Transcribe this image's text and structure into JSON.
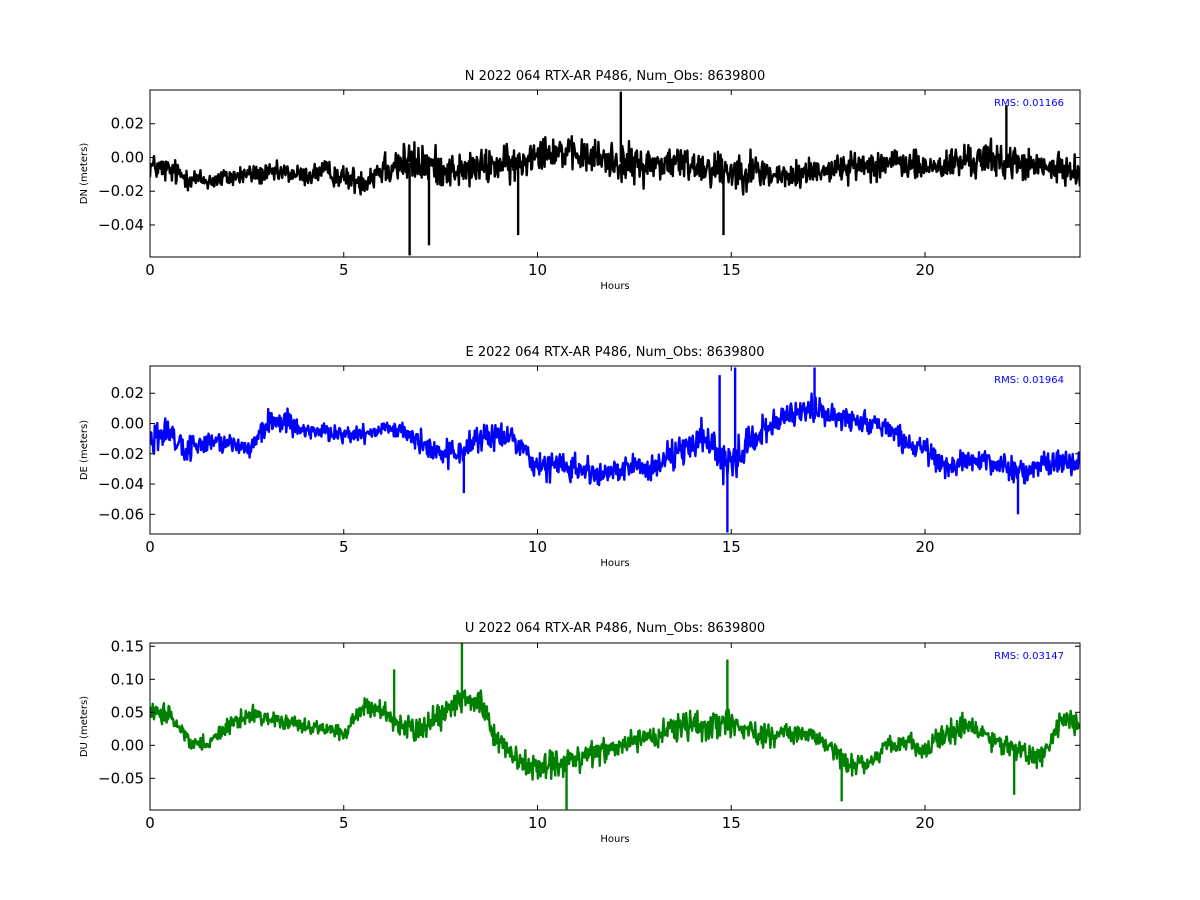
{
  "chart_data": [
    {
      "type": "line",
      "title": "N 2022 064 RTX-AR  P486, Num_Obs: 8639800",
      "xlabel": "Hours",
      "ylabel": "DN (meters)",
      "xlim": [
        0,
        24
      ],
      "ylim": [
        -0.059,
        0.04
      ],
      "xticks": [
        0,
        5,
        10,
        15,
        20
      ],
      "yticks": [
        0.02,
        0.0,
        -0.02,
        -0.04
      ],
      "ytick_labels": [
        "0.02",
        "0.00",
        "−0.02",
        "−0.04"
      ],
      "grid": false,
      "color": "#000000",
      "annotation": "RMS:  0.01166",
      "annotation_color": "#0000ff",
      "series": [
        {
          "x": [
            0,
            0.5,
            1,
            1.5,
            2,
            2.5,
            3,
            3.5,
            4,
            4.5,
            5,
            5.5,
            6,
            6.5,
            7,
            7.5,
            8,
            8.5,
            9,
            9.5,
            10,
            10.5,
            11,
            11.5,
            12,
            12.5,
            13,
            13.5,
            14,
            14.5,
            15,
            15.5,
            16,
            16.5,
            17,
            17.5,
            18,
            18.5,
            19,
            19.5,
            20,
            20.5,
            21,
            21.5,
            22,
            22.5,
            23,
            23.5,
            24
          ],
          "y": [
            -0.005,
            -0.008,
            -0.012,
            -0.014,
            -0.012,
            -0.01,
            -0.01,
            -0.009,
            -0.011,
            -0.008,
            -0.012,
            -0.014,
            -0.006,
            -0.003,
            -0.004,
            -0.006,
            -0.008,
            -0.006,
            -0.004,
            -0.005,
            0.005,
            0.004,
            0.001,
            0.0,
            -0.002,
            -0.005,
            -0.004,
            -0.003,
            -0.004,
            -0.006,
            -0.008,
            -0.007,
            -0.01,
            -0.012,
            -0.008,
            -0.007,
            -0.006,
            -0.004,
            -0.003,
            -0.004,
            -0.006,
            -0.005,
            -0.002,
            -0.001,
            -0.002,
            -0.004,
            -0.006,
            -0.007,
            -0.008
          ],
          "spread": [
            0.011,
            0.012,
            0.01,
            0.009,
            0.009,
            0.009,
            0.009,
            0.009,
            0.009,
            0.01,
            0.01,
            0.012,
            0.017,
            0.019,
            0.018,
            0.016,
            0.015,
            0.015,
            0.016,
            0.016,
            0.015,
            0.014,
            0.014,
            0.016,
            0.017,
            0.017,
            0.016,
            0.015,
            0.016,
            0.017,
            0.018,
            0.016,
            0.014,
            0.012,
            0.012,
            0.012,
            0.012,
            0.013,
            0.014,
            0.013,
            0.012,
            0.014,
            0.015,
            0.016,
            0.015,
            0.014,
            0.013,
            0.012,
            0.012
          ],
          "spikes": [
            [
              6.7,
              -0.058
            ],
            [
              12.15,
              0.039
            ],
            [
              7.2,
              -0.052
            ],
            [
              22.1,
              0.031
            ],
            [
              14.8,
              -0.046
            ],
            [
              9.5,
              -0.046
            ]
          ]
        }
      ]
    },
    {
      "type": "line",
      "title": "E 2022 064 RTX-AR  P486, Num_Obs: 8639800",
      "xlabel": "Hours",
      "ylabel": "DE (meters)",
      "xlim": [
        0,
        24
      ],
      "ylim": [
        -0.073,
        0.038
      ],
      "xticks": [
        0,
        5,
        10,
        15,
        20
      ],
      "yticks": [
        0.02,
        0.0,
        -0.02,
        -0.04,
        -0.06
      ],
      "ytick_labels": [
        "0.02",
        "0.00",
        "−0.02",
        "−0.04",
        "−0.06"
      ],
      "grid": false,
      "color": "#0000ff",
      "annotation": "RMS:  0.01964",
      "annotation_color": "#0000ff",
      "series": [
        {
          "x": [
            0,
            0.5,
            1,
            1.5,
            2,
            2.5,
            3,
            3.5,
            4,
            4.5,
            5,
            5.5,
            6,
            6.5,
            7,
            7.5,
            8,
            8.5,
            9,
            9.5,
            10,
            10.5,
            11,
            11.5,
            12,
            12.5,
            13,
            13.5,
            14,
            14.5,
            15,
            15.5,
            16,
            16.5,
            17,
            17.5,
            18,
            18.5,
            19,
            19.5,
            20,
            20.5,
            21,
            21.5,
            22,
            22.5,
            23,
            23.5,
            24
          ],
          "y": [
            -0.01,
            -0.006,
            -0.02,
            -0.01,
            -0.012,
            -0.018,
            0.0,
            0.002,
            -0.005,
            -0.006,
            -0.008,
            -0.006,
            -0.004,
            -0.004,
            -0.012,
            -0.02,
            -0.018,
            -0.01,
            -0.008,
            -0.012,
            -0.03,
            -0.026,
            -0.03,
            -0.034,
            -0.032,
            -0.028,
            -0.03,
            -0.02,
            -0.01,
            -0.016,
            -0.026,
            -0.014,
            0.0,
            0.006,
            0.01,
            0.006,
            0.004,
            0.0,
            -0.004,
            -0.012,
            -0.02,
            -0.028,
            -0.026,
            -0.024,
            -0.028,
            -0.032,
            -0.028,
            -0.025,
            -0.026
          ],
          "spread": [
            0.012,
            0.013,
            0.013,
            0.011,
            0.01,
            0.011,
            0.012,
            0.012,
            0.01,
            0.009,
            0.008,
            0.008,
            0.008,
            0.008,
            0.011,
            0.013,
            0.014,
            0.013,
            0.013,
            0.014,
            0.014,
            0.013,
            0.014,
            0.014,
            0.012,
            0.012,
            0.013,
            0.016,
            0.02,
            0.022,
            0.022,
            0.02,
            0.013,
            0.011,
            0.012,
            0.012,
            0.012,
            0.011,
            0.011,
            0.012,
            0.012,
            0.012,
            0.012,
            0.012,
            0.013,
            0.013,
            0.012,
            0.012,
            0.013
          ],
          "spikes": [
            [
              15.1,
              0.037
            ],
            [
              14.9,
              -0.072
            ],
            [
              17.15,
              0.037
            ],
            [
              14.7,
              0.032
            ],
            [
              8.1,
              -0.046
            ],
            [
              22.4,
              -0.06
            ]
          ]
        }
      ]
    },
    {
      "type": "line",
      "title": "U 2022 064 RTX-AR  P486, Num_Obs: 8639800",
      "xlabel": "Hours",
      "ylabel": "DU (meters)",
      "xlim": [
        0,
        24
      ],
      "ylim": [
        -0.098,
        0.155
      ],
      "xticks": [
        0,
        5,
        10,
        15,
        20
      ],
      "yticks": [
        0.15,
        0.1,
        0.05,
        0.0,
        -0.05
      ],
      "ytick_labels": [
        "0.15",
        "0.10",
        "0.05",
        "0.00",
        "−0.05"
      ],
      "grid": false,
      "color": "#008000",
      "annotation": "RMS:  0.03147",
      "annotation_color": "#0000ff",
      "series": [
        {
          "x": [
            0,
            0.5,
            1,
            1.5,
            2,
            2.5,
            3,
            3.5,
            4,
            4.5,
            5,
            5.5,
            6,
            6.5,
            7,
            7.5,
            8,
            8.5,
            9,
            9.5,
            10,
            10.5,
            11,
            11.5,
            12,
            12.5,
            13,
            13.5,
            14,
            14.5,
            15,
            15.5,
            16,
            16.5,
            17,
            17.5,
            18,
            18.5,
            19,
            19.5,
            20,
            20.5,
            21,
            21.5,
            22,
            22.5,
            23,
            23.5,
            24
          ],
          "y": [
            0.045,
            0.05,
            0.005,
            0.0,
            0.03,
            0.045,
            0.045,
            0.035,
            0.03,
            0.025,
            0.015,
            0.06,
            0.05,
            0.03,
            0.025,
            0.045,
            0.07,
            0.075,
            0.0,
            -0.02,
            -0.03,
            -0.025,
            -0.02,
            -0.01,
            -0.005,
            0.01,
            0.01,
            0.025,
            0.035,
            0.03,
            0.04,
            0.02,
            0.015,
            0.02,
            0.015,
            0.005,
            -0.03,
            -0.03,
            0.0,
            0.005,
            -0.005,
            0.015,
            0.03,
            0.02,
            0.0,
            -0.01,
            -0.02,
            0.04,
            0.035
          ],
          "spread": [
            0.02,
            0.018,
            0.016,
            0.016,
            0.022,
            0.022,
            0.02,
            0.018,
            0.016,
            0.016,
            0.018,
            0.02,
            0.025,
            0.028,
            0.028,
            0.03,
            0.035,
            0.035,
            0.03,
            0.028,
            0.03,
            0.032,
            0.03,
            0.028,
            0.026,
            0.026,
            0.028,
            0.03,
            0.034,
            0.036,
            0.036,
            0.03,
            0.026,
            0.022,
            0.022,
            0.024,
            0.026,
            0.024,
            0.022,
            0.022,
            0.022,
            0.024,
            0.026,
            0.026,
            0.025,
            0.024,
            0.026,
            0.026,
            0.024
          ],
          "spikes": [
            [
              8.05,
              0.155
            ],
            [
              10.75,
              -0.097
            ],
            [
              14.9,
              0.13
            ],
            [
              22.3,
              -0.075
            ],
            [
              17.85,
              -0.085
            ],
            [
              6.3,
              0.115
            ]
          ]
        }
      ]
    }
  ]
}
